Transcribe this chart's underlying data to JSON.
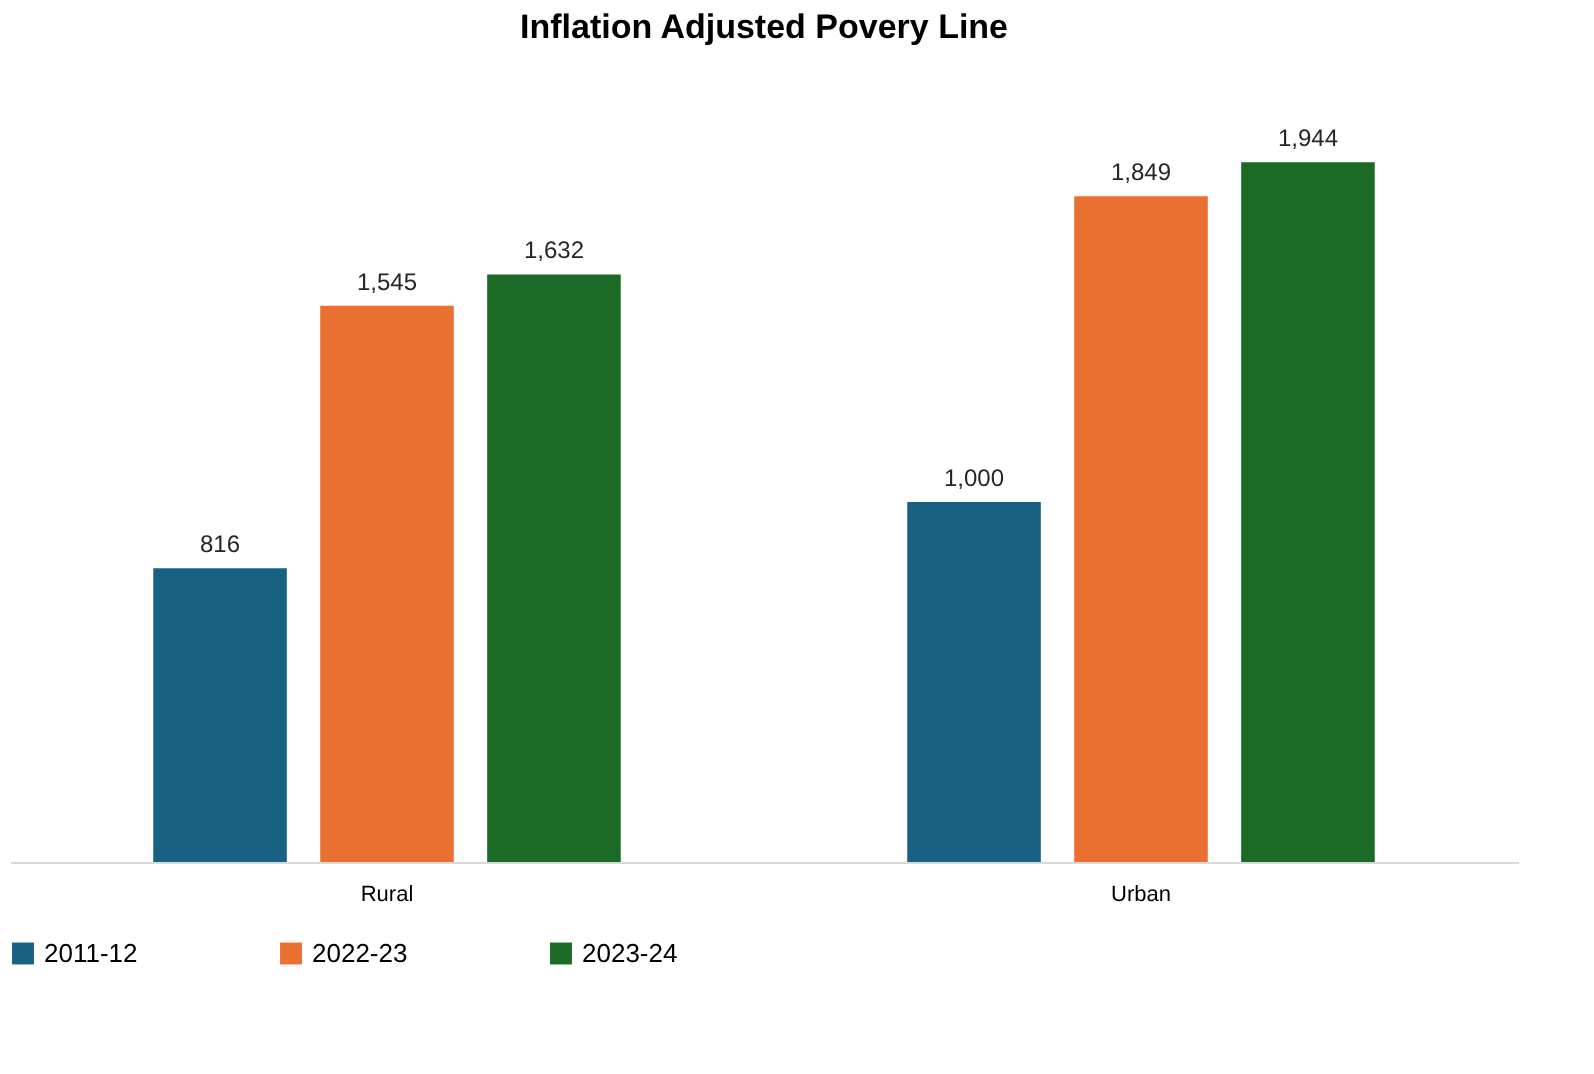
{
  "chart_data": {
    "type": "bar",
    "title": "Inflation Adjusted Povery Line",
    "categories": [
      "Rural",
      "Urban"
    ],
    "series": [
      {
        "name": "2011-12",
        "color": "#176183",
        "values": [
          816,
          1000
        ],
        "value_labels": [
          "816",
          "1,000"
        ]
      },
      {
        "name": "2022-23",
        "color": "#ea7031",
        "values": [
          1545,
          1849
        ],
        "value_labels": [
          "1,545",
          "1,849"
        ]
      },
      {
        "name": "2023-24",
        "color": "#1b6b26",
        "values": [
          1632,
          1944
        ],
        "value_labels": [
          "1,632",
          "1,944"
        ]
      }
    ],
    "legend": "bottom",
    "grid": false
  }
}
